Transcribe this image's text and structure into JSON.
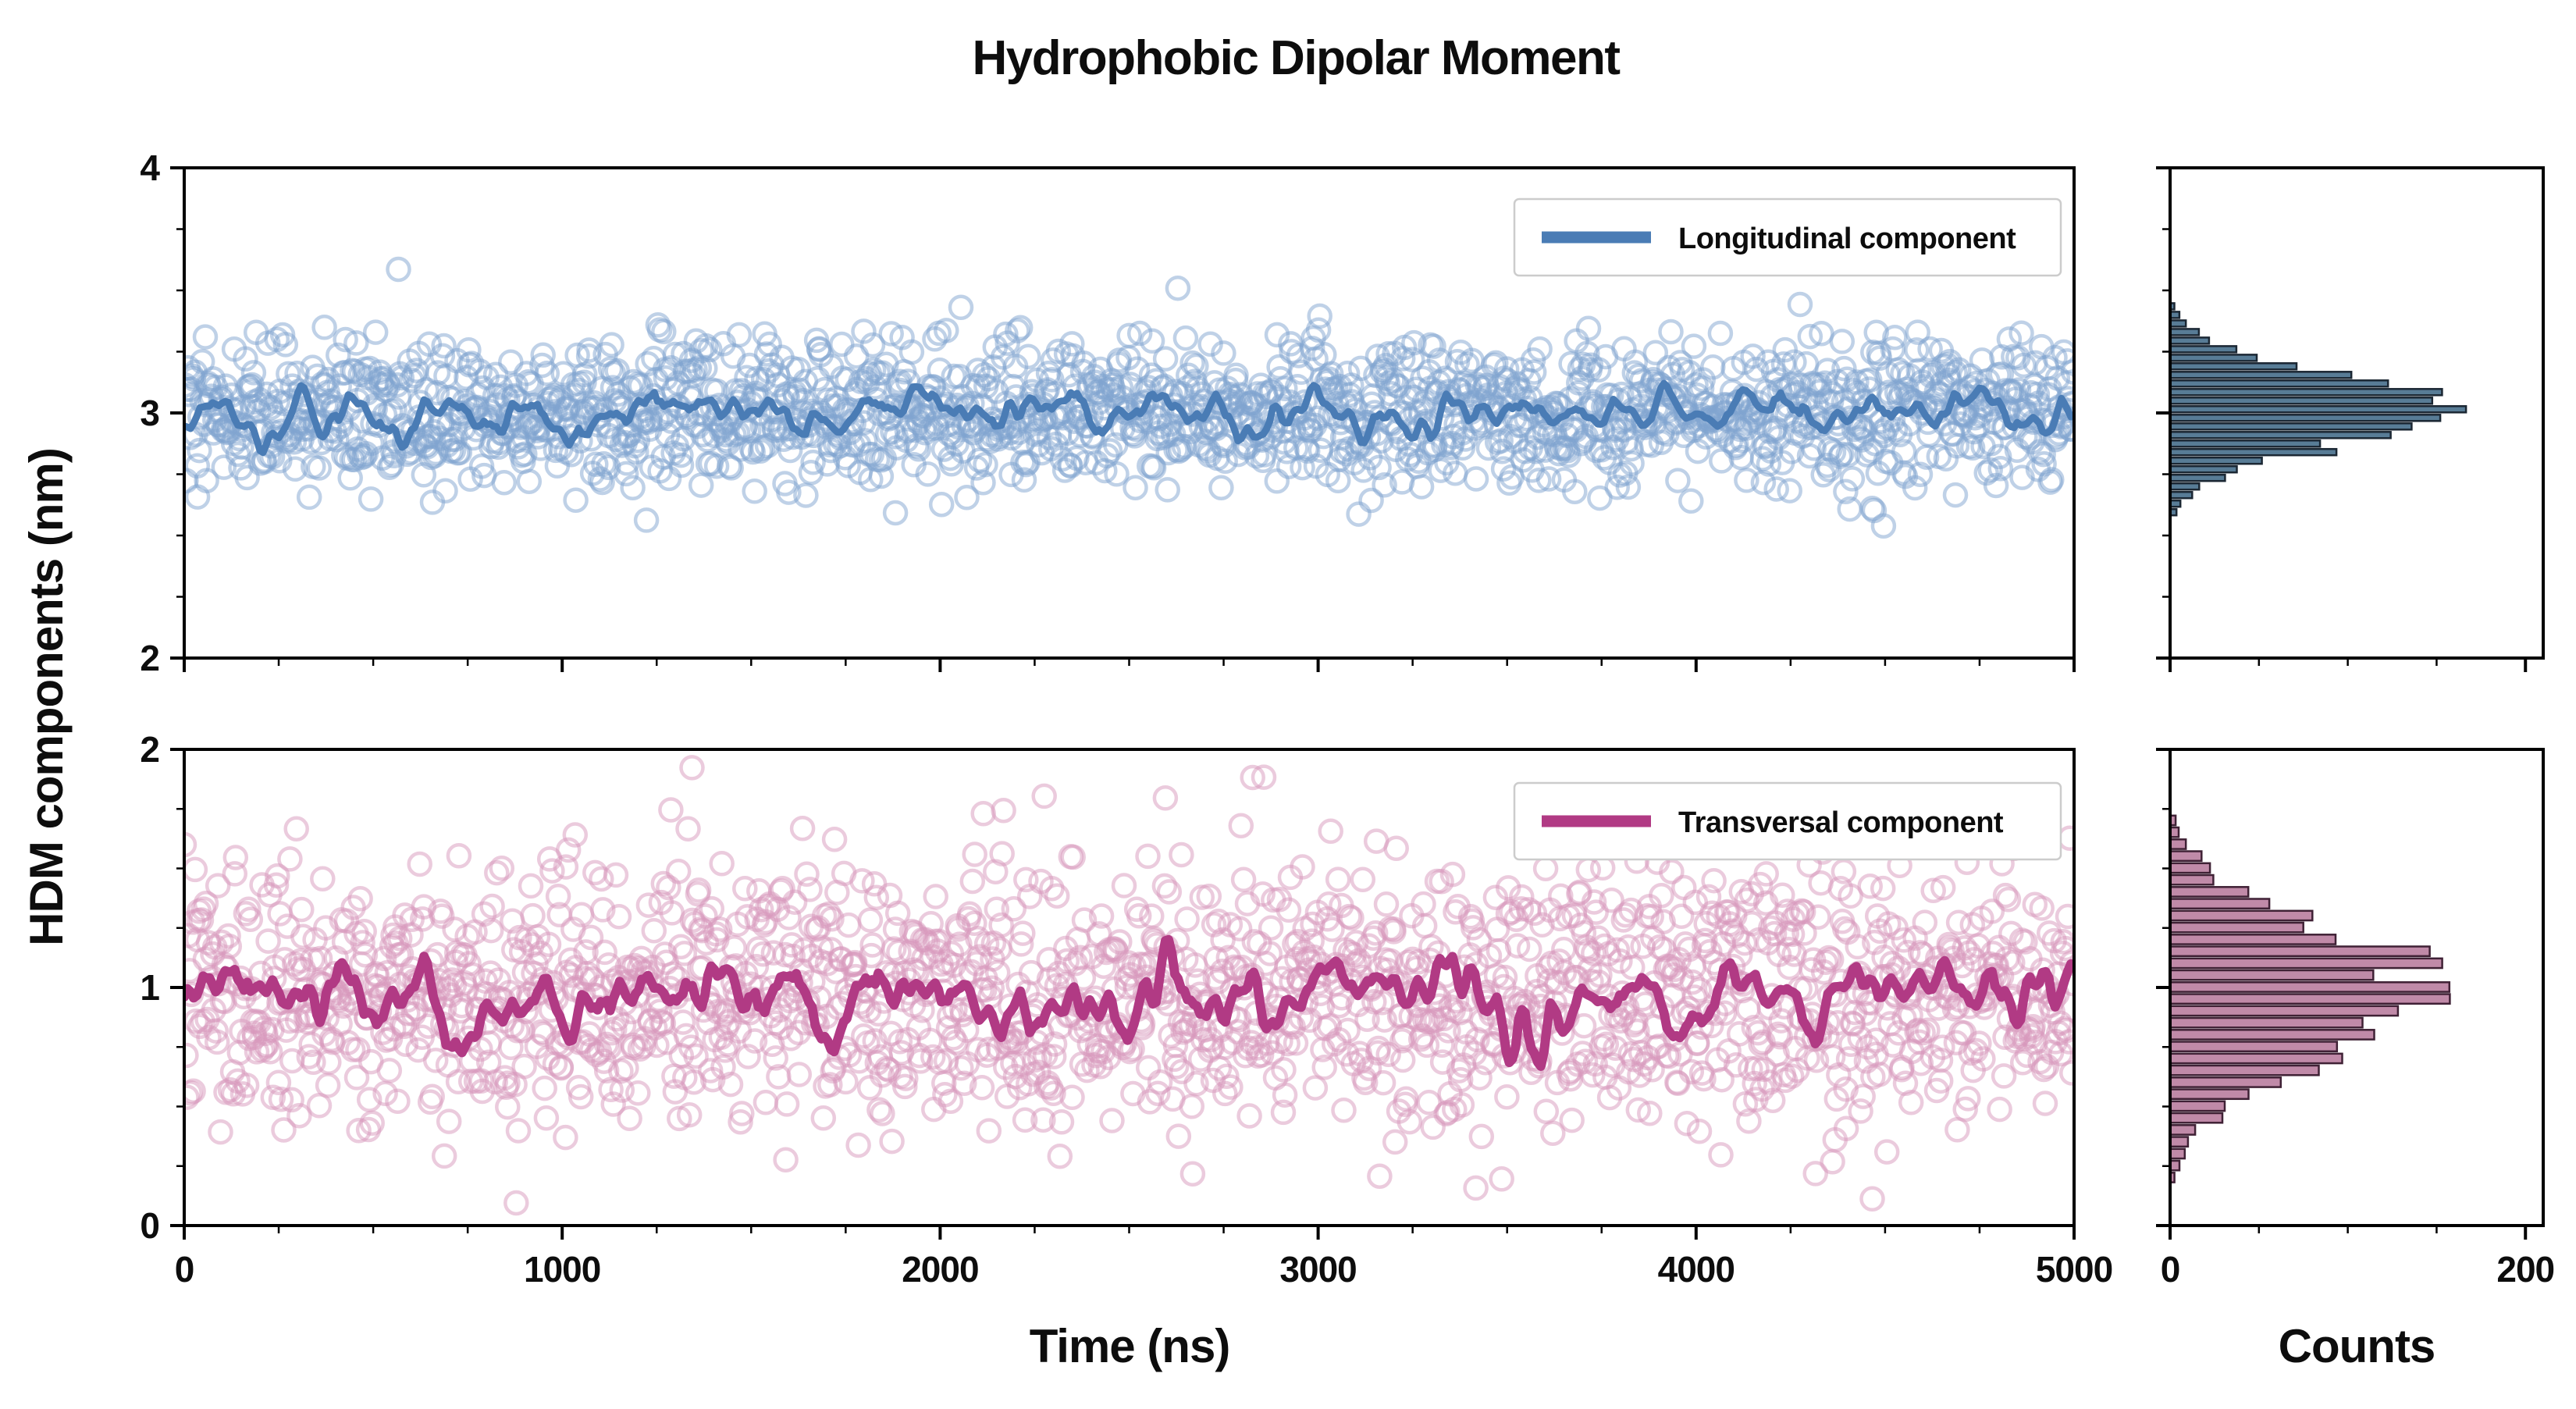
{
  "title": "Hydrophobic Dipolar Moment",
  "axes": {
    "ylabel": "HDM components (nm)",
    "xlabel": "Time (ns)",
    "counts_label": "Counts"
  },
  "chart_data": [
    {
      "type": "scatter",
      "panel": "top",
      "legend": "Longitudinal component",
      "marker": "open-circle",
      "x_range": [
        0,
        5000
      ],
      "y_range": [
        2,
        4
      ],
      "x_ticks": [
        0,
        1000,
        2000,
        3000,
        4000,
        5000
      ],
      "x_minor_step": 250,
      "y_ticks": [
        2,
        3,
        4
      ],
      "y_minor_step": 0.25,
      "x_tick_labels_visible": false,
      "mean": 3.0,
      "std": 0.15,
      "n_points": 1700,
      "trend": {
        "description": "running average line",
        "amplitude": 0.055,
        "line_width": 9
      },
      "hist": {
        "orientation": "horizontal",
        "bin_width": 0.035,
        "peak_count": 148,
        "axis_max": 200,
        "axis_ticks": [
          0,
          200
        ],
        "axis_minor_ticks": [
          50,
          100,
          150
        ],
        "y_span": [
          2.5,
          3.55
        ]
      },
      "colors": {
        "scatter": "#7fa3cf",
        "line": "#4a7cb5",
        "hist_fill": "#587c96",
        "hist_edge": "#1b2733"
      },
      "seed": 42
    },
    {
      "type": "scatter",
      "panel": "bottom",
      "legend": "Transversal component",
      "marker": "open-circle",
      "x_range": [
        0,
        5000
      ],
      "y_range": [
        0,
        2
      ],
      "x_ticks": [
        0,
        1000,
        2000,
        3000,
        4000,
        5000
      ],
      "x_minor_step": 250,
      "y_ticks": [
        0,
        1,
        2
      ],
      "y_minor_step": 0.25,
      "x_tick_labels_visible": true,
      "mean": 0.97,
      "std": 0.27,
      "n_points": 1700,
      "trend": {
        "description": "running average line",
        "amplitude": 0.095,
        "line_width": 12
      },
      "hist": {
        "orientation": "horizontal",
        "bin_width": 0.05,
        "peak_count": 152,
        "axis_max": 200,
        "axis_ticks": [
          0,
          200
        ],
        "axis_minor_ticks": [
          50,
          100,
          150
        ],
        "y_span": [
          0.2,
          1.75
        ]
      },
      "colors": {
        "scatter": "#d898bb",
        "line": "#b13a84",
        "hist_fill": "#c08aa8",
        "hist_edge": "#3f2135"
      },
      "seed": 7
    }
  ]
}
